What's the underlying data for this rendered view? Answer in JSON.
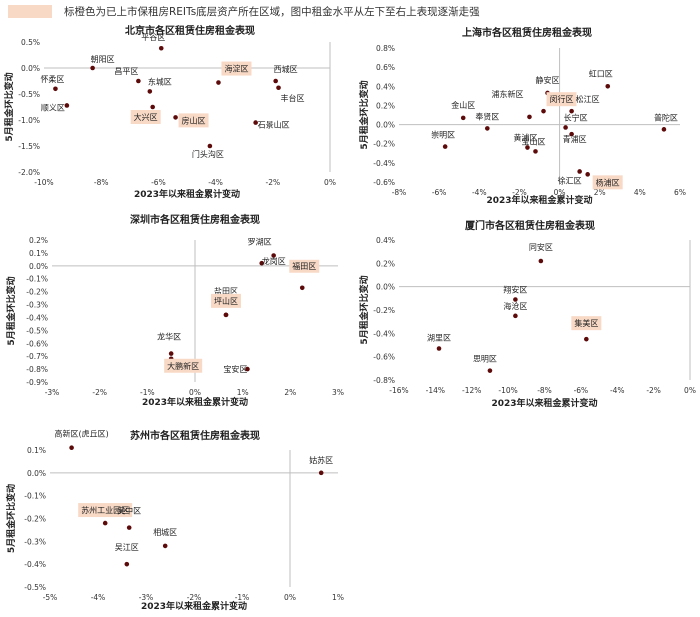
{
  "legend": {
    "text": "标橙色为已上市保租房REITs底层资产所在区域，图中租金水平从左下至右上表现逐渐走强",
    "highlight_color": "#f8d9c6"
  },
  "colors": {
    "point": "#5c0a0a",
    "axis": "#bfbfbf",
    "highlight_bg": "#f8d9c6"
  },
  "chart_data": [
    {
      "id": "beijing",
      "type": "scatter",
      "title": "北京市各区租赁住房租金表现",
      "xlabel": "2023年以来租金累计变动",
      "ylabel": "5月租金环比变动",
      "xlim": [
        -10,
        0
      ],
      "ylim": [
        -2.0,
        0.5
      ],
      "xticks": [
        -10,
        -8,
        -6,
        -4,
        -2,
        0
      ],
      "yticks": [
        0.5,
        0.0,
        -0.5,
        -1.0,
        -1.5,
        -2.0
      ],
      "xdec": 0,
      "ydec": 1,
      "points": [
        {
          "name": "平谷区",
          "x": -5.9,
          "y": 0.38,
          "hl": false
        },
        {
          "name": "朝阳区",
          "x": -8.3,
          "y": 0.0,
          "hl": false
        },
        {
          "name": "怀柔区",
          "x": -9.6,
          "y": -0.4,
          "hl": false
        },
        {
          "name": "顺义区",
          "x": -9.2,
          "y": -0.72,
          "hl": false
        },
        {
          "name": "昌平区",
          "x": -6.7,
          "y": -0.25,
          "hl": false
        },
        {
          "name": "东城区",
          "x": -6.3,
          "y": -0.45,
          "hl": false
        },
        {
          "name": "海淀区",
          "x": -3.9,
          "y": -0.28,
          "hl": true
        },
        {
          "name": "西城区",
          "x": -1.9,
          "y": -0.25,
          "hl": false
        },
        {
          "name": "丰台区",
          "x": -1.8,
          "y": -0.38,
          "hl": false
        },
        {
          "name": "大兴区",
          "x": -6.2,
          "y": -0.75,
          "hl": true
        },
        {
          "name": "房山区",
          "x": -5.4,
          "y": -0.95,
          "hl": true
        },
        {
          "name": "石景山区",
          "x": -2.6,
          "y": -1.05,
          "hl": false
        },
        {
          "name": "门头沟区",
          "x": -4.2,
          "y": -1.5,
          "hl": false
        }
      ]
    },
    {
      "id": "shanghai",
      "type": "scatter",
      "title": "上海市各区租赁住房租金表现",
      "xlabel": "2023年以来租金累计变动",
      "ylabel": "5月租金环比变动",
      "xlim": [
        -8,
        6
      ],
      "ylim": [
        -0.6,
        0.8
      ],
      "xticks": [
        -8,
        -6,
        -4,
        -2,
        0,
        2,
        4,
        6
      ],
      "yticks": [
        0.8,
        0.6,
        0.4,
        0.2,
        0.0,
        -0.2,
        -0.4,
        -0.6
      ],
      "xdec": 0,
      "ydec": 1,
      "points": [
        {
          "name": "虹口区",
          "x": 2.4,
          "y": 0.4,
          "hl": false
        },
        {
          "name": "静安区",
          "x": -0.6,
          "y": 0.33,
          "hl": false
        },
        {
          "name": "金山区",
          "x": -4.8,
          "y": 0.07,
          "hl": false
        },
        {
          "name": "浦东新区",
          "x": -1.5,
          "y": 0.08,
          "hl": false
        },
        {
          "name": "闵行区",
          "x": -0.8,
          "y": 0.14,
          "hl": true
        },
        {
          "name": "松江区",
          "x": 0.6,
          "y": 0.14,
          "hl": false
        },
        {
          "name": "普陀区",
          "x": 5.2,
          "y": -0.05,
          "hl": false
        },
        {
          "name": "奉贤区",
          "x": -3.6,
          "y": -0.04,
          "hl": false
        },
        {
          "name": "长宁区",
          "x": 0.3,
          "y": -0.03,
          "hl": false
        },
        {
          "name": "黄浦区",
          "x": -1.6,
          "y": -0.24,
          "hl": false
        },
        {
          "name": "宝山区",
          "x": -1.2,
          "y": -0.28,
          "hl": false
        },
        {
          "name": "青浦区",
          "x": 0.6,
          "y": -0.1,
          "hl": false
        },
        {
          "name": "崇明区",
          "x": -5.7,
          "y": -0.23,
          "hl": false
        },
        {
          "name": "徐汇区",
          "x": 1.0,
          "y": -0.49,
          "hl": false
        },
        {
          "name": "杨浦区",
          "x": 1.4,
          "y": -0.52,
          "hl": true
        }
      ]
    },
    {
      "id": "shenzhen",
      "type": "scatter",
      "title": "深圳市各区租赁住房租金表现",
      "xlabel": "2023年以来租金累计变动",
      "ylabel": "5月租金环比变动",
      "xlim": [
        -3,
        3
      ],
      "ylim": [
        -0.9,
        0.2
      ],
      "xticks": [
        -3,
        -2,
        -1,
        0,
        1,
        2,
        3
      ],
      "yticks": [
        0.2,
        0.1,
        0.0,
        -0.1,
        -0.2,
        -0.3,
        -0.4,
        -0.5,
        -0.6,
        -0.7,
        -0.8,
        -0.9
      ],
      "xdec": 0,
      "ydec": 1,
      "points": [
        {
          "name": "罗湖区",
          "x": 1.65,
          "y": 0.08,
          "hl": false
        },
        {
          "name": "龙岗区",
          "x": 1.4,
          "y": 0.02,
          "hl": false
        },
        {
          "name": "福田区",
          "x": 2.25,
          "y": -0.17,
          "hl": true
        },
        {
          "name": "盐田区",
          "x": 0.65,
          "y": -0.38,
          "hl": false
        },
        {
          "name": "坪山区",
          "x": 0.65,
          "y": -0.38,
          "hl": true
        },
        {
          "name": "龙华区",
          "x": -0.5,
          "y": -0.68,
          "hl": false
        },
        {
          "name": "大鹏新区",
          "x": -0.5,
          "y": -0.72,
          "hl": true
        },
        {
          "name": "宝安区",
          "x": 1.1,
          "y": -0.8,
          "hl": false
        }
      ]
    },
    {
      "id": "xiamen",
      "type": "scatter",
      "title": "厦门市各区租赁住房租金表现",
      "xlabel": "2023年以来租金累计变动",
      "ylabel": "5月租金环比变动",
      "xlim": [
        -16,
        0
      ],
      "ylim": [
        -0.8,
        0.4
      ],
      "xticks": [
        -16,
        -14,
        -12,
        -10,
        -8,
        -6,
        -4,
        -2,
        0
      ],
      "yticks": [
        0.4,
        0.2,
        0.0,
        -0.2,
        -0.4,
        -0.6,
        -0.8
      ],
      "xdec": 0,
      "ydec": 1,
      "points": [
        {
          "name": "同安区",
          "x": -8.2,
          "y": 0.22,
          "hl": false
        },
        {
          "name": "翔安区",
          "x": -9.6,
          "y": -0.11,
          "hl": false
        },
        {
          "name": "海沧区",
          "x": -9.6,
          "y": -0.25,
          "hl": false
        },
        {
          "name": "集美区",
          "x": -5.7,
          "y": -0.45,
          "hl": true
        },
        {
          "name": "湖里区",
          "x": -13.8,
          "y": -0.53,
          "hl": false
        },
        {
          "name": "思明区",
          "x": -11.0,
          "y": -0.72,
          "hl": false
        }
      ]
    },
    {
      "id": "suzhou",
      "type": "scatter",
      "title": "苏州市各区租赁住房租金表现",
      "xlabel": "2023年以来租金累计变动",
      "ylabel": "5月租金环比变动",
      "xlim": [
        -5,
        1
      ],
      "ylim": [
        -0.5,
        0.1
      ],
      "xticks": [
        -5,
        -4,
        -3,
        -2,
        -1,
        0,
        1
      ],
      "yticks": [
        0.1,
        0.0,
        -0.1,
        -0.2,
        -0.3,
        -0.4,
        -0.5
      ],
      "xdec": 0,
      "ydec": 1,
      "points": [
        {
          "name": "高新区(虎丘区)",
          "x": -4.55,
          "y": 0.11,
          "hl": false
        },
        {
          "name": "姑苏区",
          "x": 0.65,
          "y": 0.0,
          "hl": false
        },
        {
          "name": "苏州工业园区",
          "x": -3.85,
          "y": -0.22,
          "hl": true
        },
        {
          "name": "吴中区",
          "x": -3.35,
          "y": -0.24,
          "hl": false
        },
        {
          "name": "相城区",
          "x": -2.6,
          "y": -0.32,
          "hl": false
        },
        {
          "name": "吴江区",
          "x": -3.4,
          "y": -0.4,
          "hl": false
        }
      ]
    }
  ]
}
